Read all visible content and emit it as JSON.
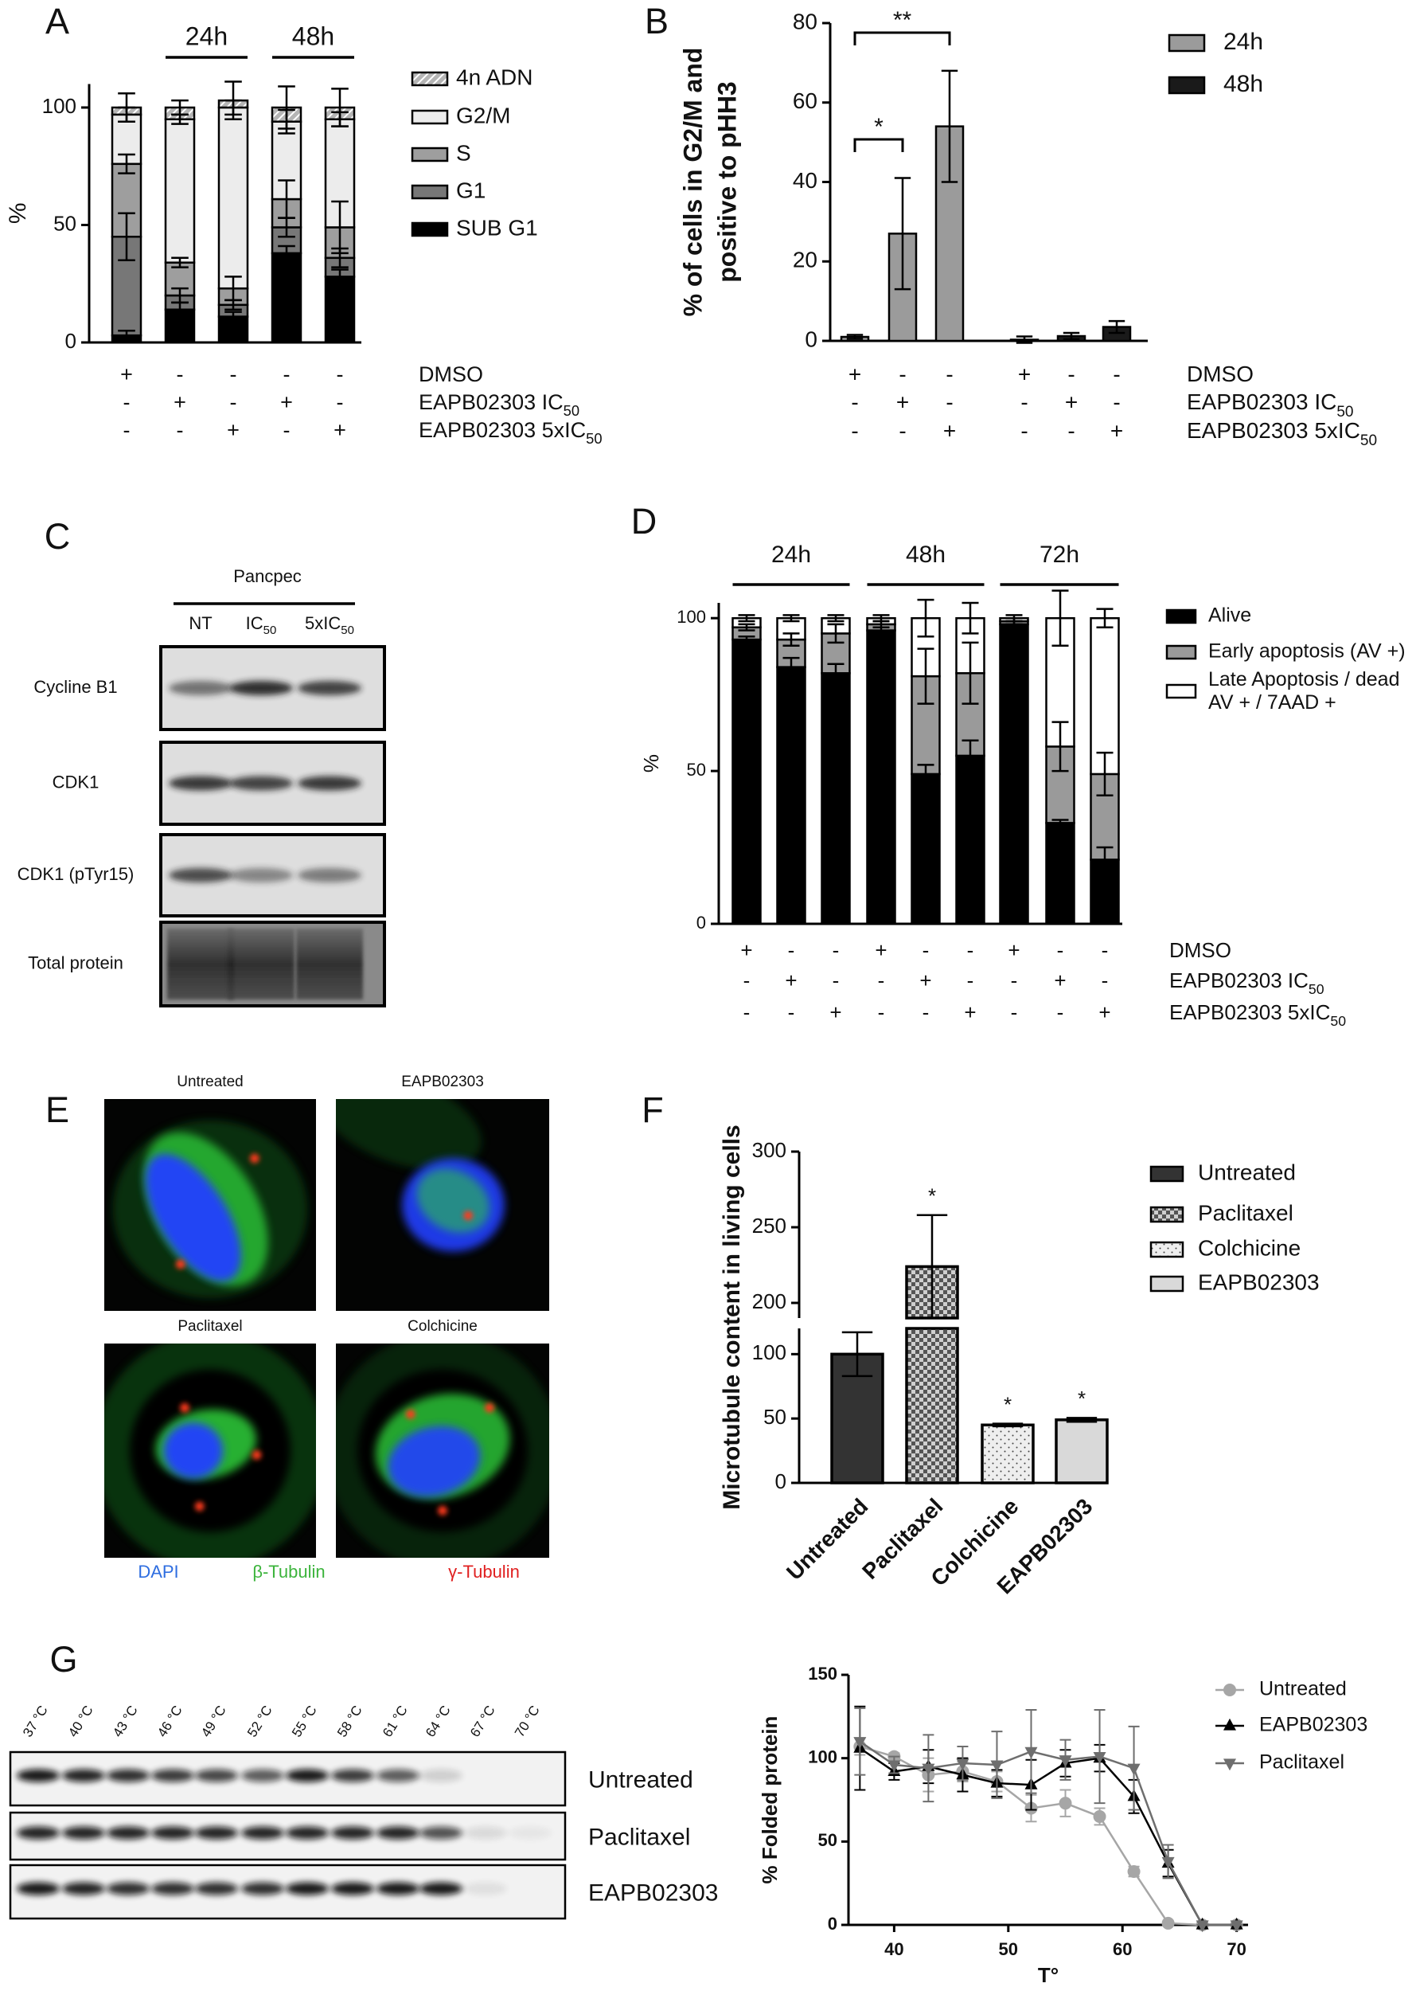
{
  "chart_data": [
    {
      "panel": "A",
      "type": "bar",
      "stacked": true,
      "ylabel": "%",
      "ylim": [
        0,
        110
      ],
      "yticks": [
        0,
        50,
        100
      ],
      "categories": [
        null,
        "24h",
        "24h",
        "48h",
        "48h"
      ],
      "series": [
        {
          "name": "SUB G1",
          "color": "#000000",
          "values": [
            3,
            14,
            11,
            38,
            28
          ],
          "errors": [
            2,
            3,
            2,
            3,
            3
          ]
        },
        {
          "name": "G1",
          "color": "#777777",
          "values": [
            42,
            6,
            5,
            11,
            8
          ],
          "errors": [
            10,
            3,
            2,
            4,
            4
          ]
        },
        {
          "name": "S",
          "color": "#9e9e9e",
          "values": [
            31,
            14,
            7,
            12,
            13
          ],
          "errors": [
            4,
            2,
            5,
            8,
            11
          ]
        },
        {
          "name": "G2/M",
          "color": "#ececec",
          "values": [
            21,
            61,
            77,
            33,
            46
          ],
          "errors": [
            3,
            2,
            3,
            5,
            3
          ]
        },
        {
          "name": "4n ADN",
          "color": "#b5b5b5",
          "pattern": "hatch",
          "values": [
            3,
            5,
            3,
            6,
            5
          ],
          "errors": [
            6,
            3,
            8,
            9,
            8
          ]
        }
      ],
      "conditions": [
        {
          "label": "DMSO",
          "signs": [
            "+",
            "-",
            "-",
            "-",
            "-"
          ]
        },
        {
          "label": "EAPB02303 IC",
          "sub": "50",
          "signs": [
            "-",
            "+",
            "-",
            "+",
            "-"
          ]
        },
        {
          "label": "EAPB02303 5xIC",
          "sub": "50",
          "signs": [
            "-",
            "-",
            "+",
            "-",
            "+"
          ]
        }
      ]
    },
    {
      "panel": "B",
      "type": "bar",
      "ylabel": [
        "% of cells in G2/M and",
        "positive to pHH3"
      ],
      "ylim": [
        0,
        80
      ],
      "yticks": [
        0,
        20,
        40,
        60,
        80
      ],
      "categories": [
        null,
        null,
        null,
        null,
        null,
        null
      ],
      "series": [
        {
          "name": "24h",
          "color": "#9b9b9b",
          "values": [
            1,
            27,
            54,
            null,
            null,
            null
          ],
          "errors": [
            0.5,
            14,
            14,
            null,
            null,
            null
          ]
        },
        {
          "name": "48h",
          "color": "#1a1a1a",
          "values": [
            null,
            null,
            null,
            0.3,
            1.2,
            3.5
          ],
          "errors": [
            null,
            null,
            null,
            0.8,
            0.8,
            1.5
          ]
        }
      ],
      "significance": [
        "*",
        "**"
      ],
      "conditions": [
        {
          "label": "DMSO",
          "signs": [
            "+",
            "-",
            "-",
            "+",
            "-",
            "-"
          ]
        },
        {
          "label": "EAPB02303 IC",
          "sub": "50",
          "signs": [
            "-",
            "+",
            "-",
            "-",
            "+",
            "-"
          ]
        },
        {
          "label": "EAPB02303 5xIC",
          "sub": "50",
          "signs": [
            "-",
            "-",
            "+",
            "-",
            "-",
            "+"
          ]
        }
      ]
    },
    {
      "panel": "D",
      "type": "bar",
      "stacked": true,
      "ylabel": "%",
      "ylim": [
        0,
        105
      ],
      "yticks": [
        0,
        50,
        100
      ],
      "categories": [
        "24h",
        "24h",
        "24h",
        "48h",
        "48h",
        "48h",
        "72h",
        "72h",
        "72h"
      ],
      "series": [
        {
          "name": "Alive",
          "color": "#000000",
          "values": [
            93,
            84,
            82,
            96,
            49,
            55,
            98,
            33,
            21
          ],
          "errors": [
            1,
            3,
            3,
            1,
            3,
            5,
            1,
            1,
            4
          ]
        },
        {
          "name": "Early apoptosis (AV +)",
          "color": "#9a9a9a",
          "values": [
            4,
            9,
            13,
            2,
            32,
            27,
            1,
            25,
            28
          ],
          "errors": [
            1,
            2,
            3,
            1,
            9,
            10,
            1,
            8,
            7
          ]
        },
        {
          "name": "Late Apoptosis  / dead\nAV + / 7AAD +",
          "color": "#ffffff",
          "values": [
            3,
            7,
            5,
            2,
            19,
            18,
            1,
            42,
            51
          ],
          "errors": [
            1,
            1,
            1,
            1,
            6,
            5,
            1,
            9,
            3
          ]
        }
      ],
      "conditions": [
        {
          "label": "DMSO",
          "signs": [
            "+",
            "-",
            "-",
            "+",
            "-",
            "-",
            "+",
            "-",
            "-"
          ]
        },
        {
          "label": "EAPB02303 IC",
          "sub": "50",
          "signs": [
            "-",
            "+",
            "-",
            "-",
            "+",
            "-",
            "-",
            "+",
            "-"
          ]
        },
        {
          "label": "EAPB02303 5xIC",
          "sub": "50",
          "signs": [
            "-",
            "-",
            "+",
            "-",
            "-",
            "+",
            "-",
            "-",
            "+"
          ]
        }
      ]
    },
    {
      "panel": "F",
      "type": "bar",
      "ylabel": "Microtubule content in living cells",
      "ylim": [
        0,
        300
      ],
      "ybreak": [
        120,
        190
      ],
      "yticks": [
        0,
        50,
        100,
        200,
        250,
        300
      ],
      "categories": [
        "Untreated",
        "Paclitaxel",
        "Colchicine",
        "EAPB02303"
      ],
      "values": [
        100,
        224,
        45,
        49
      ],
      "errors": [
        17,
        34,
        1,
        1.5
      ],
      "colors": [
        "#333333",
        "#555555",
        "#eeeeee",
        "#d9d9d9"
      ],
      "patterns": [
        null,
        "checker",
        "dots",
        null
      ],
      "significance": [
        null,
        "*",
        "*",
        "*"
      ]
    },
    {
      "type": "line",
      "xlabel": "T°",
      "ylabel": "% Folded protein",
      "x": [
        37,
        40,
        43,
        46,
        49,
        52,
        55,
        58,
        61,
        64,
        67,
        70
      ],
      "xlim": [
        36,
        71
      ],
      "xticks": [
        40,
        50,
        60,
        70
      ],
      "ylim": [
        0,
        150
      ],
      "yticks": [
        0,
        50,
        100,
        150
      ],
      "series": [
        {
          "name": "Untreated",
          "color": "#a6a6a6",
          "marker": "circle",
          "values": [
            107,
            101,
            90,
            92,
            86,
            70,
            73,
            65,
            32,
            1,
            0,
            0
          ],
          "errors": [
            5,
            2,
            10,
            6,
            6,
            8,
            8,
            5,
            3,
            1,
            0,
            0
          ]
        },
        {
          "name": "EAPB02303",
          "color": "#000000",
          "marker": "triangle-up",
          "values": [
            106,
            92,
            95,
            90,
            85,
            84,
            97,
            100,
            77,
            37,
            0,
            0
          ],
          "errors": [
            25,
            5,
            10,
            10,
            8,
            15,
            8,
            8,
            10,
            8,
            0,
            0
          ]
        },
        {
          "name": "Paclitaxel",
          "color": "#6e6e6e",
          "marker": "triangle-down",
          "values": [
            110,
            96,
            94,
            97,
            96,
            104,
            99,
            101,
            94,
            38,
            0,
            0
          ],
          "errors": [
            20,
            5,
            20,
            10,
            20,
            25,
            12,
            28,
            25,
            10,
            0,
            0
          ]
        }
      ]
    }
  ],
  "blot_c": {
    "panel": "C",
    "title": "Pancpec",
    "lanes": [
      {
        "label": "NT"
      },
      {
        "label": "IC",
        "sub": "50"
      },
      {
        "label": "5xIC",
        "sub": "50"
      }
    ],
    "rows": [
      "Cycline B1",
      "CDK1",
      "CDK1  (pTyr15)",
      "Total protein"
    ]
  },
  "images_e": {
    "panel": "E",
    "titles": [
      "Untreated",
      "EAPB02303",
      "Paclitaxel",
      "Colchicine"
    ],
    "channels": [
      {
        "label": "DAPI",
        "color": "#2f6ee0"
      },
      {
        "label": "β-Tubulin",
        "color": "#3cb43c"
      },
      {
        "label": "γ-Tubulin",
        "color": "#e02020"
      }
    ]
  },
  "blot_g": {
    "panel": "G",
    "temperatures": [
      "37 °C",
      "40 °C",
      "43 °C",
      "46 °C",
      "49 °C",
      "52 °C",
      "55 °C",
      "58 °C",
      "61 °C",
      "64 °C",
      "67 °C",
      "70 °C"
    ],
    "rows": [
      "Untreated",
      "Paclitaxel",
      "EAPB02303"
    ]
  }
}
